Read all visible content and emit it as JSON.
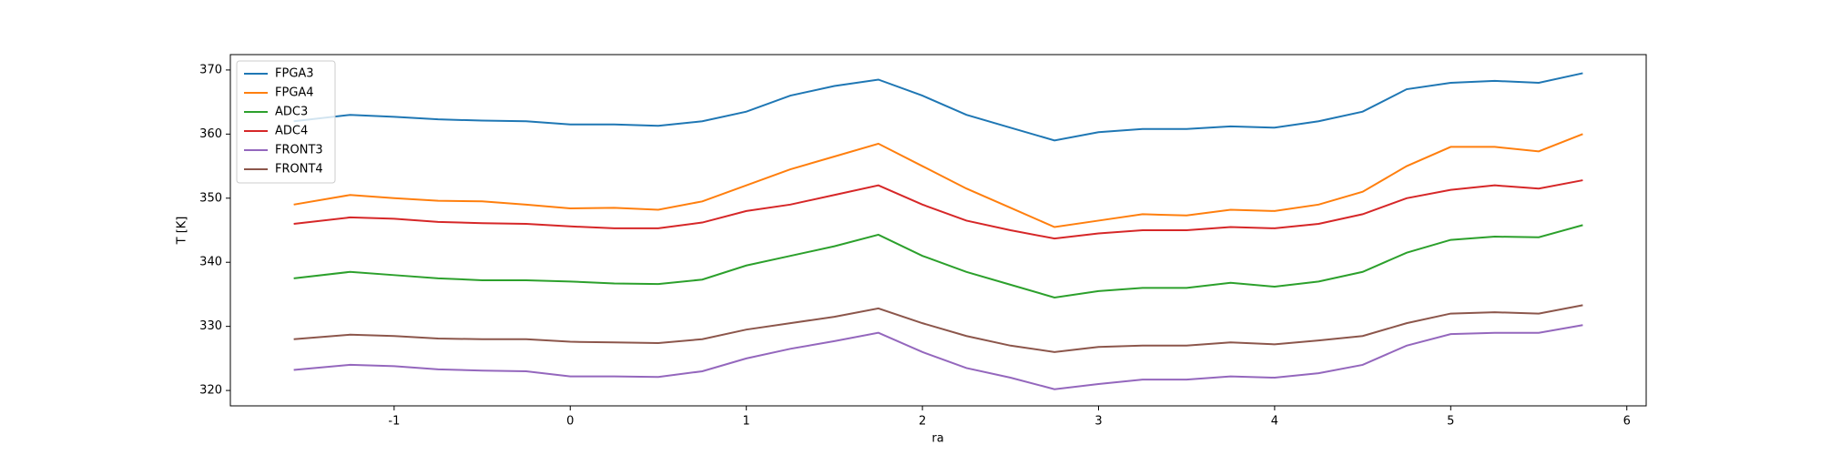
{
  "chart_data": {
    "type": "line",
    "xlabel": "ra",
    "ylabel": "T [K]",
    "x": [
      -1.57,
      -1.25,
      -1,
      -0.75,
      -0.5,
      -0.25,
      0,
      0.25,
      0.5,
      0.75,
      1,
      1.25,
      1.5,
      1.75,
      2,
      2.25,
      2.5,
      2.75,
      3,
      3.25,
      3.5,
      3.75,
      4,
      4.25,
      4.5,
      4.75,
      5,
      5.25,
      5.5,
      5.75
    ],
    "series": [
      {
        "name": "FPGA3",
        "color": "#1f77b4",
        "values": [
          362,
          363,
          362.7,
          362.3,
          362.1,
          362,
          361.5,
          361.5,
          361.3,
          362,
          363.5,
          366,
          367.5,
          368.5,
          366,
          363,
          361,
          359,
          360.3,
          360.8,
          360.8,
          361.2,
          361,
          362,
          363.5,
          367,
          368,
          368.3,
          368,
          369.5
        ]
      },
      {
        "name": "FPGA4",
        "color": "#ff7f0e",
        "values": [
          349,
          350.5,
          350,
          349.6,
          349.5,
          349,
          348.4,
          348.5,
          348.2,
          349.5,
          352,
          354.5,
          356.5,
          358.5,
          355,
          351.5,
          348.5,
          345.5,
          346.5,
          347.5,
          347.3,
          348.2,
          348,
          349,
          351,
          355,
          358,
          358,
          357.3,
          360
        ]
      },
      {
        "name": "ADC3",
        "color": "#2ca02c",
        "values": [
          337.5,
          338.5,
          338,
          337.5,
          337.2,
          337.2,
          337,
          336.7,
          336.6,
          337.3,
          339.5,
          341,
          342.5,
          344.3,
          341,
          338.5,
          336.5,
          334.5,
          335.5,
          336,
          336,
          336.8,
          336.2,
          337,
          338.5,
          341.5,
          343.5,
          344,
          343.9,
          345.8
        ]
      },
      {
        "name": "ADC4",
        "color": "#d62728",
        "values": [
          346,
          347,
          346.8,
          346.3,
          346.1,
          346,
          345.6,
          345.3,
          345.3,
          346.2,
          348,
          349,
          350.5,
          352,
          349,
          346.5,
          345,
          343.7,
          344.5,
          345,
          345,
          345.5,
          345.3,
          346,
          347.5,
          350,
          351.3,
          352,
          351.5,
          352.8
        ]
      },
      {
        "name": "FRONT3",
        "color": "#9467bd",
        "values": [
          323.2,
          324,
          323.8,
          323.3,
          323.1,
          323,
          322.2,
          322.2,
          322.1,
          323,
          325,
          326.5,
          327.7,
          329,
          326,
          323.5,
          322,
          320.2,
          321,
          321.7,
          321.7,
          322.2,
          322,
          322.7,
          324,
          327,
          328.8,
          329,
          329,
          330.2
        ]
      },
      {
        "name": "FRONT4",
        "color": "#8c564b",
        "values": [
          328,
          328.7,
          328.5,
          328.1,
          328,
          328,
          327.6,
          327.5,
          327.4,
          328,
          329.5,
          330.5,
          331.5,
          332.8,
          330.5,
          328.5,
          327,
          326,
          326.8,
          327,
          327,
          327.5,
          327.2,
          327.8,
          328.5,
          330.5,
          332,
          332.2,
          332,
          333.3
        ]
      }
    ],
    "xlim": [
      -1.93,
      6.11
    ],
    "xticks": [
      -1,
      0,
      1,
      2,
      3,
      4,
      5,
      6
    ],
    "ylim": [
      317.6,
      372.4
    ],
    "yticks": [
      320,
      330,
      340,
      350,
      360,
      370
    ],
    "legend": "upper left",
    "grid": false
  }
}
